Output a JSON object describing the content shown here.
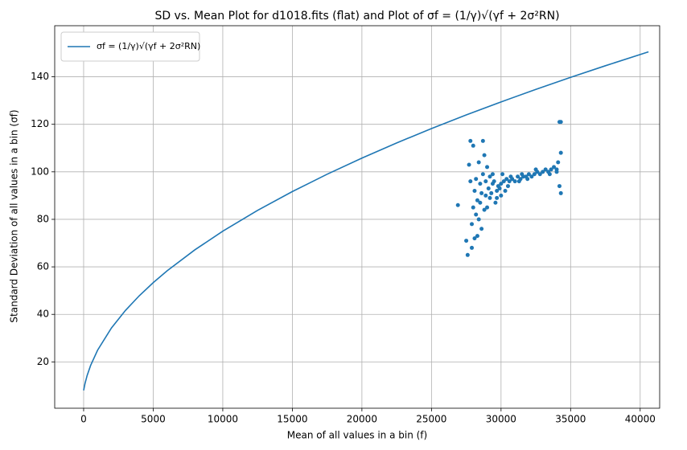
{
  "chart_data": {
    "type": "line",
    "title": "SD vs. Mean Plot for d1018.fits (flat) and Plot of σf = (1/γ)√(γf + 2σ²RN)",
    "x_label": "Mean of all values in a bin (f)",
    "y_label": "Standard Deviation of all values in a bin (σf)",
    "xlim": [
      -2080,
      41400
    ],
    "ylim": [
      0.5,
      161.5
    ],
    "xticks": [
      0,
      5000,
      10000,
      15000,
      20000,
      25000,
      30000,
      35000,
      40000
    ],
    "yticks": [
      20,
      40,
      60,
      80,
      100,
      120,
      140
    ],
    "grid": true,
    "legend": "upper left",
    "series": [
      {
        "name": "σf = (1/γ)√(γf + 2σ²RN)",
        "type": "line",
        "color": "#1f77b4",
        "x": [
          0,
          100,
          250,
          500,
          1000,
          2000,
          3000,
          4000,
          5000,
          6000,
          8000,
          10000,
          12500,
          15000,
          17500,
          20000,
          22500,
          25000,
          27500,
          30000,
          32500,
          35000,
          37500,
          40600
        ],
        "values": [
          8,
          10.94,
          14.25,
          18.49,
          24.9,
          34.3,
          41.63,
          47.85,
          53.34,
          58.33,
          67.19,
          75.01,
          83.77,
          91.7,
          98.99,
          105.78,
          112.17,
          118.2,
          123.94,
          129.43,
          134.7,
          139.76,
          144.65,
          150.5
        ]
      },
      {
        "type": "scatter",
        "color": "#1f77b4",
        "x": [
          26900,
          27500,
          27600,
          27700,
          27800,
          27800,
          27900,
          27900,
          28000,
          28000,
          28100,
          28100,
          28200,
          28200,
          28300,
          28300,
          28400,
          28400,
          28500,
          28500,
          28600,
          28600,
          28700,
          28700,
          28800,
          28800,
          28900,
          28900,
          29000,
          29000,
          29100,
          29200,
          29200,
          29300,
          29400,
          29500,
          29600,
          29700,
          29800,
          29900,
          30000,
          30000,
          30200,
          30300,
          30400,
          30500,
          30600,
          30800,
          31000,
          31200,
          31400,
          31500,
          31600,
          31800,
          32000,
          32200,
          32400,
          32600,
          32800,
          33000,
          33200,
          33400,
          33600,
          33800,
          34000,
          34100,
          34200,
          34300,
          34300,
          34300,
          34200,
          34000,
          33500,
          32500,
          31900,
          31300,
          30700,
          30100,
          29700,
          29400
        ],
        "values": [
          86,
          71,
          65,
          103,
          113,
          96,
          68,
          78,
          111,
          85,
          72,
          92,
          82,
          97,
          73,
          88,
          104,
          80,
          95,
          87,
          91,
          76,
          113,
          99,
          84,
          107,
          90,
          96,
          85,
          102,
          93,
          89,
          98,
          91,
          95,
          96,
          87,
          92,
          94,
          93,
          95,
          90,
          96,
          92,
          97,
          94,
          96,
          97,
          96,
          98,
          97,
          99,
          98,
          98,
          99,
          98,
          99,
          100,
          99,
          100,
          101,
          100,
          101,
          102,
          101,
          104,
          121,
          121,
          108,
          91,
          94,
          100,
          99,
          101,
          97,
          96,
          98,
          99,
          89,
          99
        ]
      }
    ]
  }
}
